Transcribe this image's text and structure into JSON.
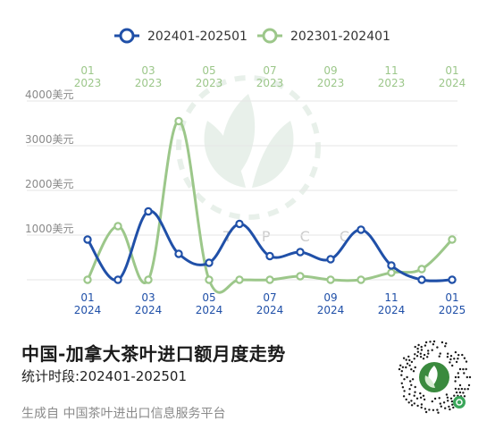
{
  "footer": {
    "title": "中国-加拿大茶叶进口额月度走势",
    "period": "统计时段:202401-202501",
    "source": "生成自 中国茶叶进出口信息服务平台"
  },
  "watermark": {
    "text": "T P C C"
  },
  "colors": {
    "series_2024": "#2050a8",
    "series_2023": "#9cc78a",
    "grid": "#e6e6e6",
    "axis_text": "#8a8a8a"
  },
  "chart_data": {
    "type": "line",
    "title": "",
    "ylim": [
      0,
      4000
    ],
    "y_ticks": [
      {
        "value": 1000,
        "label": "1000美元"
      },
      {
        "value": 2000,
        "label": "2000美元"
      },
      {
        "value": 3000,
        "label": "3000美元"
      },
      {
        "value": 4000,
        "label": "4000美元"
      }
    ],
    "legend_position": "top",
    "grid": true,
    "bottom_axis": {
      "categories": [
        "202401",
        "202402",
        "202403",
        "202404",
        "202405",
        "202406",
        "202407",
        "202408",
        "202409",
        "202410",
        "202411",
        "202412",
        "202501"
      ],
      "tick_labels": [
        {
          "index": 0,
          "month": "01",
          "year": "2024"
        },
        {
          "index": 2,
          "month": "03",
          "year": "2024"
        },
        {
          "index": 4,
          "month": "05",
          "year": "2024"
        },
        {
          "index": 6,
          "month": "07",
          "year": "2024"
        },
        {
          "index": 8,
          "month": "09",
          "year": "2024"
        },
        {
          "index": 10,
          "month": "11",
          "year": "2024"
        },
        {
          "index": 12,
          "month": "01",
          "year": "2025"
        }
      ]
    },
    "top_axis": {
      "categories": [
        "202301",
        "202302",
        "202303",
        "202304",
        "202305",
        "202306",
        "202307",
        "202308",
        "202309",
        "202310",
        "202311",
        "202312",
        "202401"
      ],
      "tick_labels": [
        {
          "index": 0,
          "month": "01",
          "year": "2023"
        },
        {
          "index": 2,
          "month": "03",
          "year": "2023"
        },
        {
          "index": 4,
          "month": "05",
          "year": "2023"
        },
        {
          "index": 6,
          "month": "07",
          "year": "2023"
        },
        {
          "index": 8,
          "month": "09",
          "year": "2023"
        },
        {
          "index": 10,
          "month": "11",
          "year": "2023"
        },
        {
          "index": 12,
          "month": "01",
          "year": "2024"
        }
      ]
    },
    "series": [
      {
        "name": "202401-202501",
        "axis": "bottom",
        "color": "#2050a8",
        "values": [
          900,
          0,
          1530,
          580,
          380,
          1250,
          530,
          620,
          460,
          1120,
          320,
          0,
          0
        ]
      },
      {
        "name": "202301-202401",
        "axis": "top",
        "color": "#9cc78a",
        "values": [
          0,
          1200,
          0,
          3550,
          0,
          0,
          0,
          80,
          0,
          0,
          160,
          240,
          900
        ]
      }
    ]
  }
}
